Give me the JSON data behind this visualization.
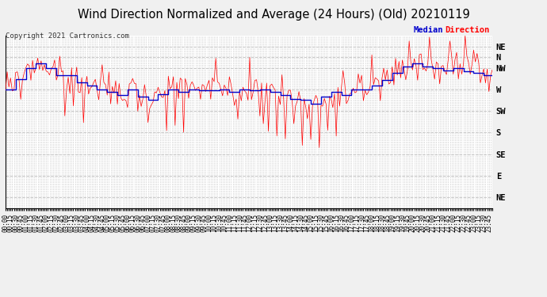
{
  "title": "Wind Direction Normalized and Average (24 Hours) (Old) 20210119",
  "copyright": "Copyright 2021 Cartronics.com",
  "legend_median": "Median",
  "legend_direction": "Direction",
  "y_labels": [
    "NE",
    "N",
    "NW",
    "W",
    "SW",
    "S",
    "SE",
    "E",
    "NE"
  ],
  "y_values": [
    360,
    337.5,
    315,
    270,
    225,
    180,
    135,
    90,
    45
  ],
  "ylim": [
    22.5,
    382.5
  ],
  "background_color": "#f0f0f0",
  "plot_background": "#ffffff",
  "grid_color": "#c8c8c8",
  "red_color": "#ff0000",
  "blue_color": "#0000cc",
  "title_fontsize": 10.5,
  "copyright_fontsize": 6.5,
  "tick_fontsize": 5.5,
  "ytick_fontsize": 7.5,
  "legend_fontsize": 7.5
}
